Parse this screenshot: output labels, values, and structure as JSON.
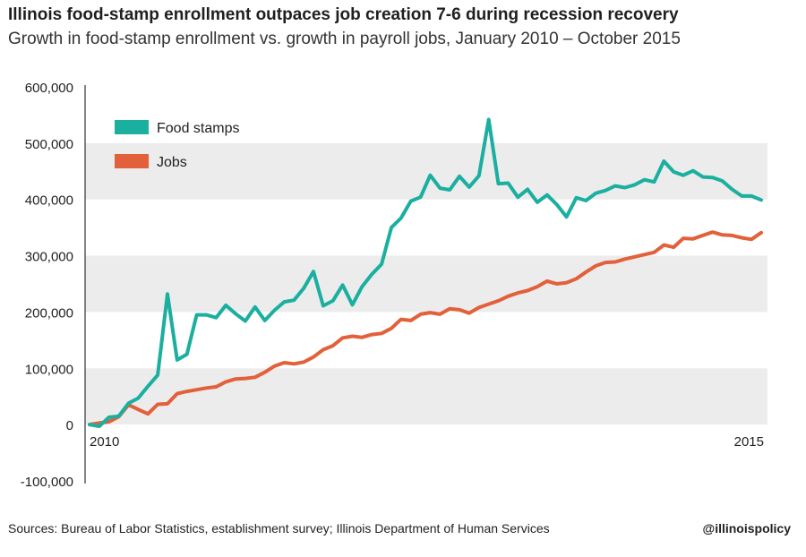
{
  "header": {
    "title": "Illinois food-stamp enrollment outpaces job creation 7-6 during recession recovery",
    "subtitle": "Growth in food-stamp enrollment vs. growth in payroll jobs, January 2010 – October 2015"
  },
  "footer": {
    "source": "Sources: Bureau of Labor Statistics, establishment survey; Illinois Department of Human Services",
    "handle": "@illinoispolicy"
  },
  "chart_data": {
    "type": "line",
    "title": "Illinois food-stamp enrollment outpaces job creation 7-6 during recession recovery",
    "subtitle": "Growth in food-stamp enrollment vs. growth in payroll jobs, January 2010 – October 2015",
    "xlabel": "",
    "ylabel": "",
    "x_range": [
      "2010-01",
      "2015-10"
    ],
    "x_tick_labels": [
      "2010",
      "2015"
    ],
    "y_ticks": [
      -100000,
      0,
      100000,
      200000,
      300000,
      400000,
      500000,
      600000
    ],
    "y_tick_labels": [
      "-100,000",
      "0",
      "100,000",
      "200,000",
      "300,000",
      "400,000",
      "500,000",
      "600,000"
    ],
    "ylim": [
      -100000,
      600000
    ],
    "grid": "alternating horizontal bands",
    "legend_position": "top-left",
    "colors": {
      "food_stamps": "#1aaf9f",
      "jobs": "#e2603a",
      "band": "#ececec"
    },
    "series": [
      {
        "name": "Food stamps",
        "values": [
          0,
          -3000,
          13000,
          15000,
          38000,
          47000,
          68000,
          88000,
          232000,
          115000,
          125000,
          195000,
          195000,
          190000,
          212000,
          197000,
          184000,
          209000,
          185000,
          203000,
          218000,
          221000,
          242000,
          272000,
          211000,
          220000,
          248000,
          213000,
          245000,
          267000,
          285000,
          350000,
          367000,
          397000,
          404000,
          443000,
          420000,
          417000,
          441000,
          422000,
          442000,
          542000,
          428000,
          429000,
          404000,
          418000,
          395000,
          408000,
          391000,
          369000,
          403000,
          398000,
          411000,
          416000,
          424000,
          421000,
          426000,
          435000,
          431000,
          468000,
          449000,
          443000,
          451000,
          440000,
          439000,
          433000,
          418000,
          406000,
          406000,
          399000
        ]
      },
      {
        "name": "Jobs",
        "values": [
          0,
          3000,
          5000,
          14000,
          35000,
          27000,
          19000,
          36000,
          37000,
          55000,
          59000,
          62000,
          65000,
          67000,
          76000,
          81000,
          82000,
          84000,
          93000,
          104000,
          110000,
          108000,
          111000,
          120000,
          133000,
          140000,
          154000,
          157000,
          155000,
          160000,
          162000,
          171000,
          187000,
          185000,
          196000,
          199000,
          196000,
          206000,
          204000,
          198000,
          208000,
          214000,
          220000,
          228000,
          234000,
          238000,
          245000,
          255000,
          250000,
          252000,
          259000,
          271000,
          282000,
          288000,
          289000,
          294000,
          298000,
          302000,
          306000,
          319000,
          315000,
          331000,
          330000,
          336000,
          342000,
          337000,
          336000,
          332000,
          329000,
          341000
        ]
      }
    ]
  }
}
